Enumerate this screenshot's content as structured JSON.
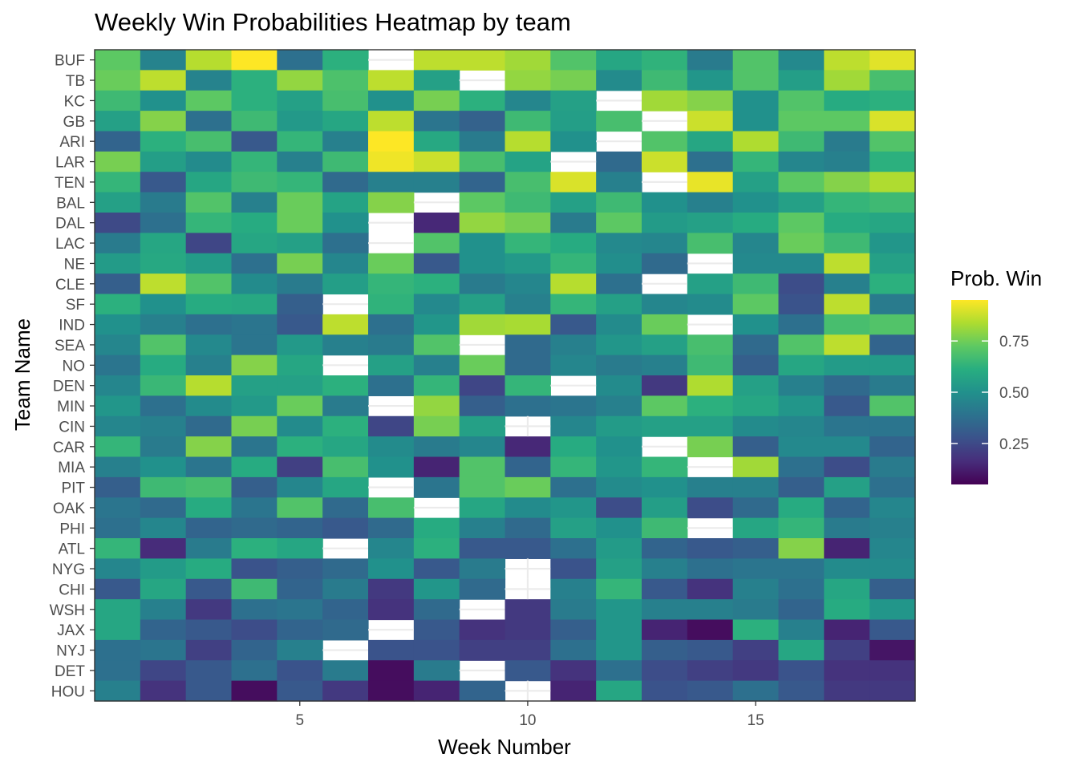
{
  "chart_data": {
    "type": "heatmap",
    "title": "Weekly Win Probabilities Heatmap by team",
    "xlabel": "Week Number",
    "ylabel": "Team Name",
    "legend_title": "Prob. Win",
    "legend_position": "right",
    "colorscale": "viridis",
    "color_range": [
      0.05,
      0.95
    ],
    "legend_ticks": [
      0.25,
      0.5,
      0.75
    ],
    "legend_tick_labels": [
      "0.25",
      "0.50",
      "0.75"
    ],
    "xlim": [
      0.5,
      18.5
    ],
    "x_ticks": [
      5,
      10,
      15
    ],
    "x_tick_labels": [
      "5",
      "10",
      "15"
    ],
    "x": [
      1,
      2,
      3,
      4,
      5,
      6,
      7,
      8,
      9,
      10,
      11,
      12,
      13,
      14,
      15,
      16,
      17,
      18
    ],
    "teams": [
      "BUF",
      "TB",
      "KC",
      "GB",
      "ARI",
      "LAR",
      "TEN",
      "BAL",
      "DAL",
      "LAC",
      "NE",
      "CLE",
      "SF",
      "IND",
      "SEA",
      "NO",
      "DEN",
      "MIN",
      "CIN",
      "CAR",
      "MIA",
      "PIT",
      "OAK",
      "PHI",
      "ATL",
      "NYG",
      "CHI",
      "WSH",
      "JAX",
      "NYJ",
      "DET",
      "HOU"
    ],
    "values": [
      [
        0.72,
        0.45,
        0.85,
        0.95,
        0.38,
        0.62,
        null,
        0.86,
        0.86,
        0.82,
        0.7,
        0.58,
        0.63,
        0.42,
        0.7,
        0.47,
        0.86,
        0.91
      ],
      [
        0.74,
        0.86,
        0.45,
        0.62,
        0.8,
        0.69,
        0.86,
        0.56,
        null,
        0.8,
        0.76,
        0.48,
        0.66,
        0.52,
        0.7,
        0.55,
        0.82,
        0.68
      ],
      [
        0.66,
        0.5,
        0.72,
        0.62,
        0.56,
        0.68,
        0.5,
        0.76,
        0.62,
        0.46,
        0.56,
        null,
        0.82,
        0.78,
        0.5,
        0.7,
        0.6,
        0.62
      ],
      [
        0.56,
        0.78,
        0.38,
        0.66,
        0.53,
        0.58,
        0.86,
        0.4,
        0.33,
        0.66,
        0.55,
        0.68,
        null,
        0.88,
        0.5,
        0.72,
        0.72,
        0.9
      ],
      [
        0.34,
        0.62,
        0.68,
        0.3,
        0.64,
        0.44,
        0.95,
        0.59,
        0.42,
        0.85,
        0.5,
        null,
        0.7,
        0.58,
        0.84,
        0.66,
        0.42,
        0.7
      ],
      [
        0.76,
        0.55,
        0.48,
        0.64,
        0.44,
        0.66,
        0.93,
        0.88,
        0.68,
        0.57,
        null,
        0.36,
        0.88,
        0.38,
        0.64,
        0.46,
        0.44,
        0.62
      ],
      [
        0.64,
        0.3,
        0.58,
        0.66,
        0.64,
        0.36,
        0.44,
        0.44,
        0.34,
        0.68,
        0.9,
        0.44,
        null,
        0.92,
        0.56,
        0.72,
        0.78,
        0.84
      ],
      [
        0.56,
        0.42,
        0.7,
        0.44,
        0.74,
        0.57,
        0.78,
        null,
        0.72,
        0.66,
        0.56,
        0.66,
        0.5,
        0.44,
        0.5,
        0.56,
        0.64,
        0.66
      ],
      [
        0.25,
        0.38,
        0.64,
        0.6,
        0.74,
        0.5,
        null,
        0.15,
        0.8,
        0.76,
        0.42,
        0.72,
        0.54,
        0.56,
        0.6,
        0.72,
        0.6,
        0.58
      ],
      [
        0.42,
        0.58,
        0.24,
        0.58,
        0.56,
        0.38,
        null,
        0.7,
        0.5,
        0.64,
        0.6,
        0.47,
        0.46,
        0.68,
        0.46,
        0.74,
        0.66,
        0.52
      ],
      [
        0.54,
        0.59,
        0.54,
        0.38,
        0.76,
        0.46,
        0.74,
        0.3,
        0.5,
        0.53,
        0.64,
        0.49,
        0.36,
        null,
        0.47,
        0.47,
        0.86,
        0.56
      ],
      [
        0.32,
        0.86,
        0.7,
        0.48,
        0.42,
        0.55,
        0.64,
        0.62,
        0.42,
        0.46,
        0.85,
        0.38,
        null,
        0.56,
        0.66,
        0.26,
        0.44,
        0.62
      ],
      [
        0.62,
        0.5,
        0.6,
        0.59,
        0.32,
        null,
        0.63,
        0.47,
        0.56,
        0.44,
        0.64,
        0.56,
        0.46,
        0.48,
        0.72,
        0.28,
        0.86,
        0.42
      ],
      [
        0.5,
        0.44,
        0.38,
        0.4,
        0.3,
        0.86,
        0.38,
        0.52,
        0.82,
        0.83,
        0.3,
        0.48,
        0.74,
        null,
        0.5,
        0.38,
        0.68,
        0.7
      ],
      [
        0.46,
        0.7,
        0.47,
        0.4,
        0.53,
        0.44,
        0.42,
        0.7,
        null,
        0.36,
        0.44,
        0.52,
        0.56,
        0.68,
        0.36,
        0.7,
        0.86,
        0.34
      ],
      [
        0.4,
        0.6,
        0.44,
        0.78,
        0.58,
        null,
        0.56,
        0.44,
        0.74,
        0.36,
        0.46,
        0.42,
        0.44,
        0.66,
        0.32,
        0.58,
        0.54,
        0.54
      ],
      [
        0.46,
        0.65,
        0.85,
        0.56,
        0.56,
        0.62,
        0.38,
        0.64,
        0.24,
        0.64,
        null,
        0.48,
        0.2,
        0.84,
        0.56,
        0.44,
        0.36,
        0.42
      ],
      [
        0.52,
        0.38,
        0.48,
        0.53,
        0.74,
        0.42,
        null,
        0.8,
        0.32,
        0.38,
        0.4,
        0.44,
        0.72,
        0.62,
        0.58,
        0.52,
        0.3,
        0.7
      ],
      [
        0.46,
        0.44,
        0.36,
        0.76,
        0.48,
        0.62,
        0.24,
        0.76,
        0.56,
        null,
        0.46,
        0.54,
        0.56,
        0.56,
        0.48,
        0.46,
        0.4,
        0.4
      ],
      [
        0.64,
        0.42,
        0.78,
        0.4,
        0.62,
        0.58,
        0.48,
        0.42,
        0.46,
        0.15,
        0.6,
        0.5,
        null,
        0.76,
        0.32,
        0.47,
        0.47,
        0.34
      ],
      [
        0.44,
        0.5,
        0.4,
        0.6,
        0.22,
        0.68,
        0.5,
        0.14,
        0.7,
        0.34,
        0.64,
        0.52,
        0.64,
        null,
        0.82,
        0.38,
        0.26,
        0.42
      ],
      [
        0.32,
        0.66,
        0.68,
        0.32,
        0.46,
        0.58,
        null,
        0.4,
        0.7,
        0.74,
        0.38,
        0.48,
        0.5,
        0.44,
        0.44,
        0.32,
        0.56,
        0.38
      ],
      [
        0.4,
        0.36,
        0.6,
        0.4,
        0.7,
        0.36,
        0.68,
        null,
        0.58,
        0.48,
        0.52,
        0.26,
        0.55,
        0.26,
        0.36,
        0.6,
        0.34,
        0.46
      ],
      [
        0.38,
        0.46,
        0.34,
        0.36,
        0.34,
        0.3,
        0.36,
        0.6,
        0.44,
        0.36,
        0.56,
        0.5,
        0.66,
        null,
        0.58,
        0.64,
        0.42,
        0.44
      ],
      [
        0.64,
        0.16,
        0.42,
        0.62,
        0.58,
        null,
        0.46,
        0.62,
        0.3,
        0.3,
        0.38,
        0.54,
        0.34,
        0.3,
        0.32,
        0.78,
        0.14,
        0.46
      ],
      [
        0.46,
        0.54,
        0.6,
        0.28,
        0.32,
        0.36,
        0.5,
        0.3,
        0.42,
        null,
        0.28,
        0.56,
        0.44,
        0.38,
        0.4,
        0.4,
        0.48,
        0.48
      ],
      [
        0.3,
        0.58,
        0.3,
        0.66,
        0.34,
        0.42,
        0.2,
        0.52,
        0.36,
        null,
        0.44,
        0.64,
        0.3,
        0.18,
        0.44,
        0.38,
        0.58,
        0.32
      ],
      [
        0.58,
        0.44,
        0.2,
        0.38,
        0.4,
        0.34,
        0.18,
        0.36,
        null,
        0.2,
        0.42,
        0.52,
        0.44,
        0.44,
        0.42,
        0.34,
        0.6,
        0.52
      ],
      [
        0.58,
        0.34,
        0.3,
        0.26,
        0.34,
        0.36,
        null,
        0.3,
        0.18,
        0.2,
        0.32,
        0.52,
        0.14,
        0.08,
        0.62,
        0.44,
        0.14,
        0.3
      ],
      [
        0.38,
        0.4,
        0.22,
        0.34,
        0.44,
        null,
        0.28,
        0.28,
        0.22,
        0.22,
        0.38,
        0.52,
        0.32,
        0.3,
        0.22,
        0.58,
        0.22,
        0.1
      ],
      [
        0.38,
        0.24,
        0.3,
        0.38,
        0.28,
        0.42,
        0.08,
        0.42,
        null,
        0.3,
        0.18,
        0.38,
        0.26,
        0.22,
        0.2,
        0.28,
        0.18,
        0.18
      ],
      [
        0.44,
        0.18,
        0.3,
        0.08,
        0.3,
        0.2,
        0.08,
        0.14,
        0.34,
        null,
        0.14,
        0.58,
        0.28,
        0.3,
        0.38,
        0.3,
        0.2,
        0.2
      ]
    ]
  }
}
